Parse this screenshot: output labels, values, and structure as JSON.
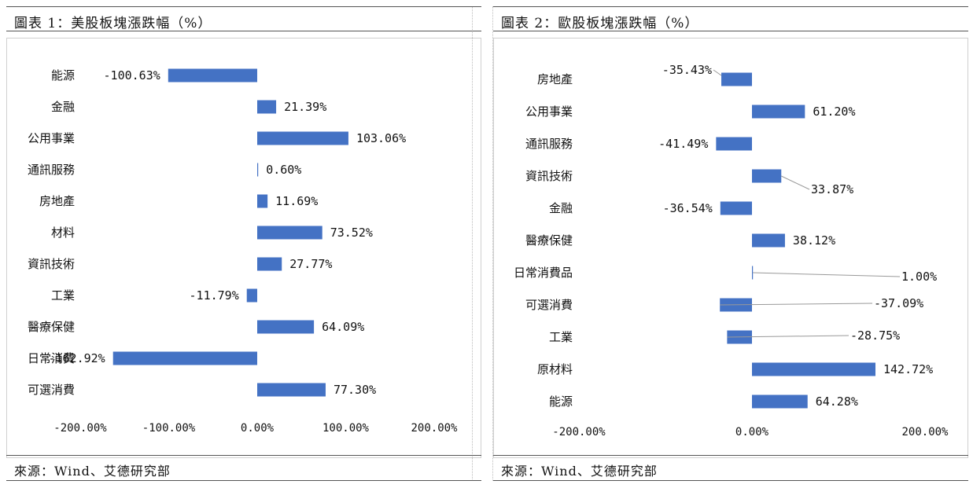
{
  "charts": [
    {
      "title": "圖表 1：美股板塊漲跌幅（%）",
      "source": "來源：Wind、艾德研究部",
      "chart_data": {
        "type": "bar",
        "orientation": "horizontal",
        "categories": [
          "能源",
          "金融",
          "公用事業",
          "通訊服務",
          "房地產",
          "材料",
          "資訊技術",
          "工業",
          "醫療保健",
          "日常消費",
          "可選消費"
        ],
        "values": [
          -100.63,
          21.39,
          103.06,
          0.6,
          11.69,
          73.52,
          27.77,
          -11.79,
          64.09,
          -162.92,
          77.3
        ],
        "labels": [
          "-100.63%",
          "21.39%",
          "103.06%",
          "0.60%",
          "11.69%",
          "73.52%",
          "27.77%",
          "-11.79%",
          "64.09%",
          "-162.92%",
          "77.30%"
        ],
        "xlim": [
          -200,
          200
        ],
        "ticks": [
          -200,
          -100,
          0,
          100,
          200
        ],
        "tick_labels": [
          "-200.00%",
          "-100.00%",
          "0.00%",
          "100.00%",
          "200.00%"
        ],
        "bar_color": "#4472C4",
        "grid": false
      }
    },
    {
      "title": "圖表 2：歐股板塊漲跌幅（%）",
      "source": "來源：Wind、艾德研究部",
      "chart_data": {
        "type": "bar",
        "orientation": "horizontal",
        "categories": [
          "房地產",
          "公用事業",
          "通訊服務",
          "資訊技術",
          "金融",
          "醫療保健",
          "日常消費品",
          "可選消費",
          "工業",
          "原材料",
          "能源"
        ],
        "values": [
          -35.43,
          61.2,
          -41.49,
          33.87,
          -36.54,
          38.12,
          1.0,
          -37.09,
          -28.75,
          142.72,
          64.28
        ],
        "labels": [
          "-35.43%",
          "61.20%",
          "-41.49%",
          "33.87%",
          "-36.54%",
          "38.12%",
          "1.00%",
          "-37.09%",
          "-28.75%",
          "142.72%",
          "64.28%"
        ],
        "xlim": [
          -200,
          200
        ],
        "ticks": [
          -200,
          0,
          200
        ],
        "tick_labels": [
          "-200.00%",
          "0.00%",
          "200.00%"
        ],
        "bar_color": "#4472C4",
        "grid": false
      }
    }
  ]
}
